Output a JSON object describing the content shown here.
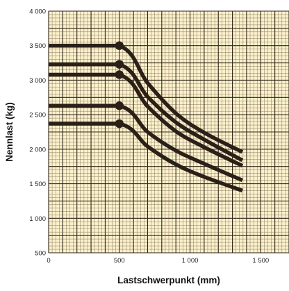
{
  "chart_data": {
    "type": "line",
    "xlabel": "Lastschwerpunkt (mm)",
    "ylabel": "Nennlast (kg)",
    "xlim": [
      0,
      1700
    ],
    "ylim": [
      500,
      4000
    ],
    "x_ticks": [
      {
        "value": 0,
        "label": "0"
      },
      {
        "value": 500,
        "label": "500"
      },
      {
        "value": 1000,
        "label": "1 000"
      },
      {
        "value": 1500,
        "label": "1 500"
      }
    ],
    "y_ticks": [
      {
        "value": 500,
        "label": "500"
      },
      {
        "value": 1000,
        "label": "1 000"
      },
      {
        "value": 1500,
        "label": "1 500"
      },
      {
        "value": 2000,
        "label": "2 000"
      },
      {
        "value": 2500,
        "label": "2 500"
      },
      {
        "value": 3000,
        "label": "3 000"
      },
      {
        "value": 3500,
        "label": "3 500"
      },
      {
        "value": 4000,
        "label": "4 000"
      }
    ],
    "grid": true,
    "legend": "none",
    "colors": {
      "plot_background": "#fbf1cc",
      "grid_minor": "#7a6a50",
      "grid_major": "#2f2418",
      "curve": "#2a2018"
    },
    "series": [
      {
        "x": [
          0,
          500,
          700,
          900,
          1100,
          1370
        ],
        "y": [
          3500,
          3500,
          2960,
          2520,
          2240,
          1960
        ]
      },
      {
        "x": [
          0,
          500,
          700,
          900,
          1100,
          1370
        ],
        "y": [
          3230,
          3230,
          2760,
          2390,
          2140,
          1840
        ]
      },
      {
        "x": [
          0,
          500,
          700,
          900,
          1100,
          1370
        ],
        "y": [
          3080,
          3080,
          2620,
          2260,
          2030,
          1760
        ]
      },
      {
        "x": [
          0,
          500,
          700,
          900,
          1100,
          1370
        ],
        "y": [
          2630,
          2630,
          2250,
          1980,
          1790,
          1550
        ]
      },
      {
        "x": [
          0,
          500,
          700,
          900,
          1100,
          1370
        ],
        "y": [
          2370,
          2370,
          2040,
          1780,
          1600,
          1400
        ]
      }
    ]
  }
}
